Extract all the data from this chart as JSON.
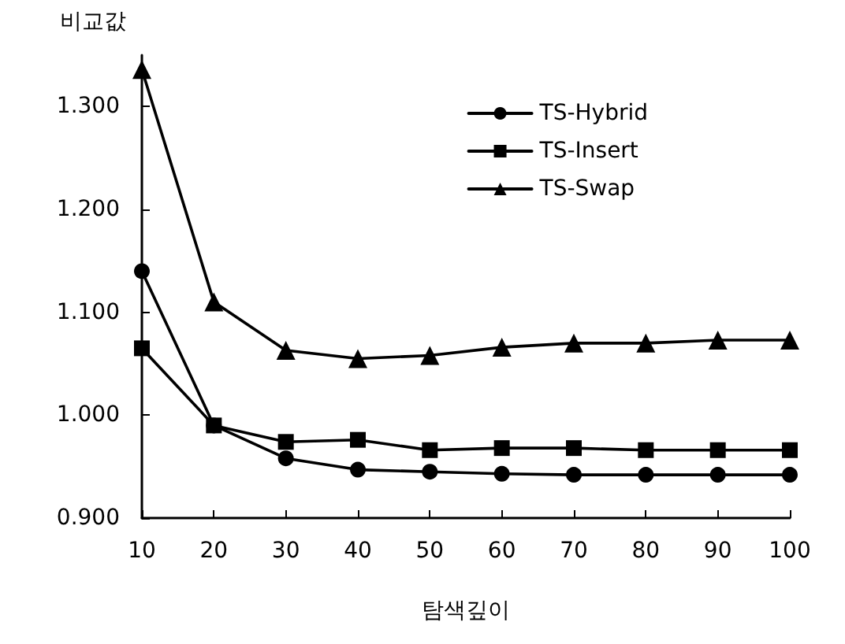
{
  "chart_data": {
    "type": "line",
    "xlabel": "탐색깊이",
    "ylabel": "비교값",
    "x": [
      10,
      20,
      30,
      40,
      50,
      60,
      70,
      80,
      90,
      100
    ],
    "series": [
      {
        "name": "TS-Hybrid",
        "color": "#000000",
        "marker": "circle",
        "values": [
          1.14,
          0.99,
          0.958,
          0.947,
          0.945,
          0.943,
          0.942,
          0.942,
          0.942,
          0.942
        ]
      },
      {
        "name": "TS-Insert",
        "color": "#000000",
        "marker": "square",
        "values": [
          1.065,
          0.99,
          0.974,
          0.976,
          0.966,
          0.968,
          0.968,
          0.966,
          0.966,
          0.966
        ]
      },
      {
        "name": "TS-Swap",
        "color": "#000000",
        "marker": "triangle",
        "values": [
          1.336,
          1.11,
          1.063,
          1.055,
          1.058,
          1.066,
          1.07,
          1.07,
          1.073,
          1.073
        ]
      }
    ],
    "xlim": [
      10,
      100
    ],
    "xticks": [
      10,
      20,
      30,
      40,
      50,
      60,
      70,
      80,
      90,
      100
    ],
    "ylim": [
      0.9,
      1.35
    ],
    "yticks": [
      {
        "value": 0.9,
        "label": "0.900"
      },
      {
        "value": 1.0,
        "label": "1.000"
      },
      {
        "value": 1.1,
        "label": "1.100"
      },
      {
        "value": 1.2,
        "label": "1.200"
      },
      {
        "value": 1.3,
        "label": "1.300"
      }
    ],
    "grid": false,
    "legend": "top right",
    "line_style": "solid"
  }
}
